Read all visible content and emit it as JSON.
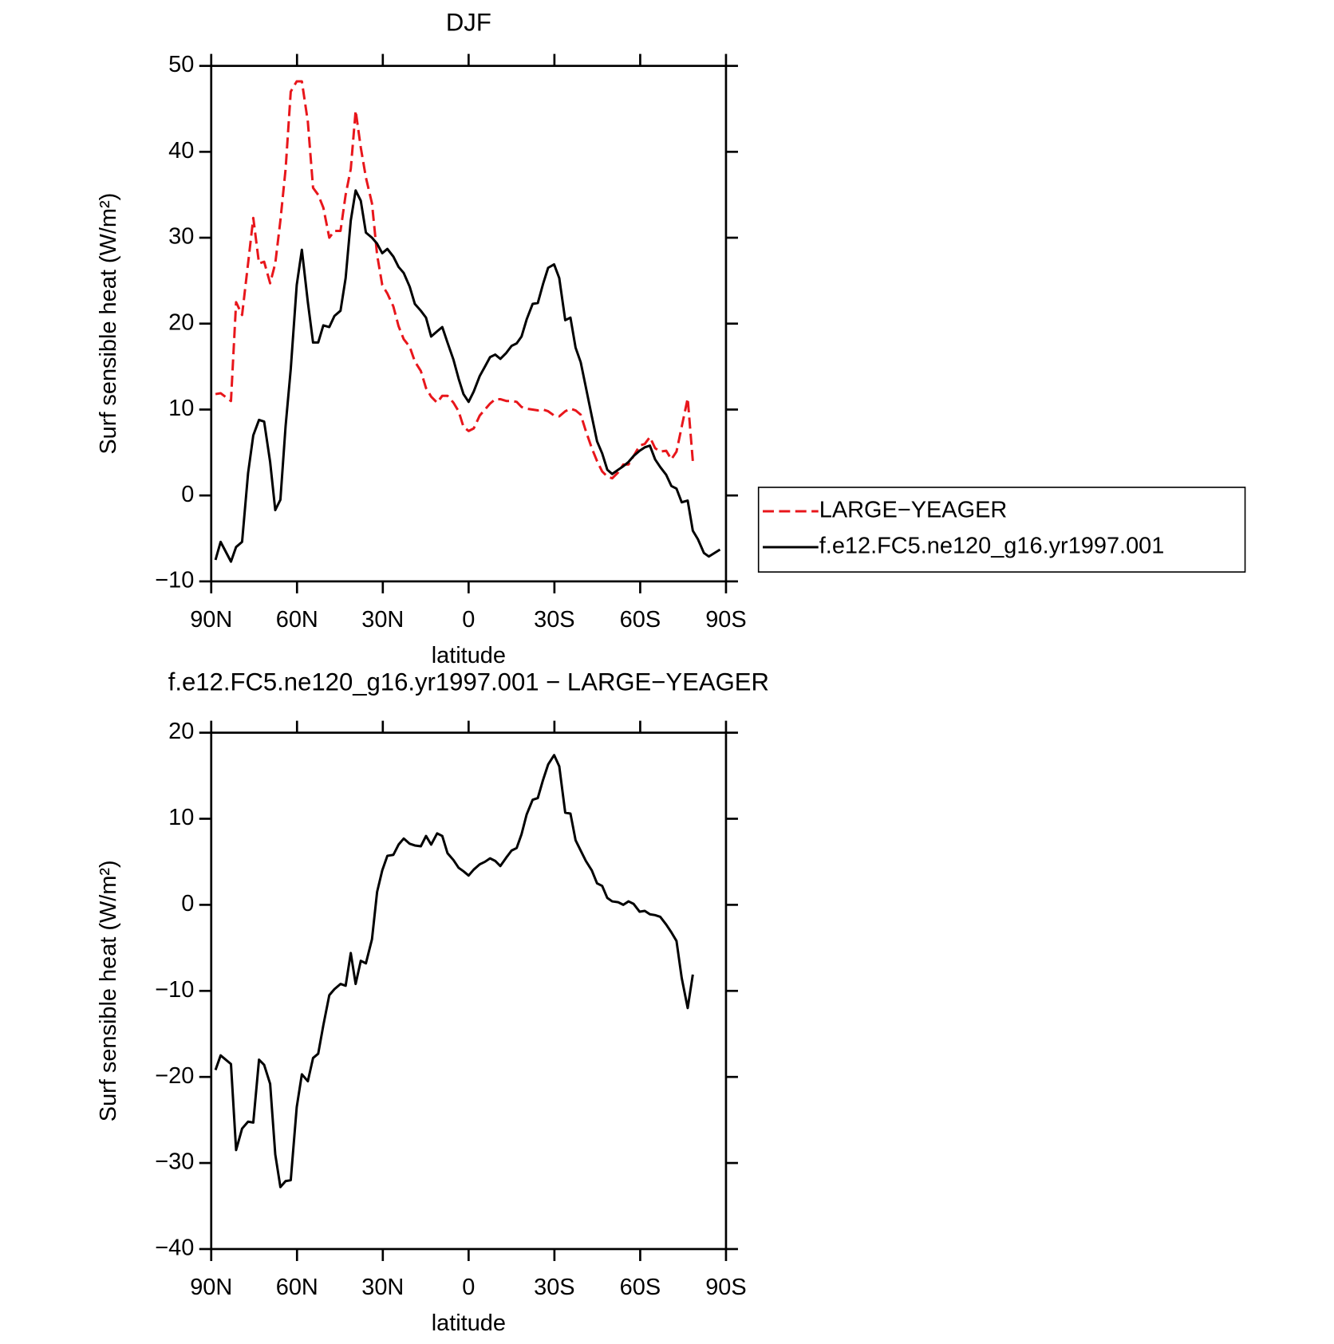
{
  "chart_data": [
    {
      "type": "line",
      "title": "DJF",
      "xlabel": "latitude",
      "ylabel": "Surf sensible heat (W/m²)",
      "xlim": [
        90,
        -90
      ],
      "xticks": [
        {
          "value": 90,
          "label": "90N"
        },
        {
          "value": 60,
          "label": "60N"
        },
        {
          "value": 30,
          "label": "30N"
        },
        0,
        {
          "value": -30,
          "label": "30S"
        },
        {
          "value": -60,
          "label": "60S"
        },
        {
          "value": -90,
          "label": "90S"
        }
      ],
      "ylim": [
        -10,
        50
      ],
      "yticks": [
        {
          "value": -10,
          "label": "−10"
        },
        0,
        10,
        20,
        30,
        40,
        50
      ],
      "legend": "right",
      "x": [
        88.5,
        86.7,
        83.1,
        81.3,
        79.2,
        77.1,
        75.3,
        73.3,
        71.5,
        69.4,
        67.6,
        65.8,
        64,
        62.2,
        60.1,
        58.3,
        56.2,
        54.4,
        52.6,
        50.8,
        48.7,
        46.9,
        44.8,
        43,
        41.2,
        39.5,
        37.7,
        35.9,
        33.8,
        32,
        30.2,
        28.4,
        26.3,
        24.5,
        22.7,
        20.6,
        18.8,
        16.7,
        14.9,
        13.1,
        11,
        9.2,
        7.4,
        5.3,
        3.5,
        1.8,
        0,
        -1.8,
        -3.9,
        -5.7,
        -7.5,
        -9.3,
        -11.1,
        -13.2,
        -15,
        -16.8,
        -18.5,
        -20.3,
        -22.4,
        -24.2,
        -26,
        -27.8,
        -29.9,
        -31.7,
        -33.8,
        -35.6,
        -37.4,
        -39.2,
        -41,
        -43.1,
        -44.9,
        -46.7,
        -48.5,
        -50.2,
        -52.3,
        -54.1,
        -55.9,
        -57.7,
        -59.8,
        -61.6,
        -63.4,
        -65.2,
        -67,
        -69.1,
        -70.9,
        -72.7,
        -74.5,
        -76.6,
        -78.4,
        -80.2,
        -82.3,
        -84,
        -87.9
      ],
      "series": [
        {
          "name": "LARGE−YEAGER",
          "color": "#e8161b",
          "dash": true,
          "values": [
            11.8,
            11.9,
            11,
            22.5,
            21,
            27,
            32.3,
            27,
            27.2,
            24.7,
            27,
            32,
            38,
            47,
            48.2,
            48.2,
            43.5,
            35.8,
            35,
            33.5,
            30,
            30.8,
            30.8,
            35,
            38,
            44.8,
            40.5,
            37,
            34,
            28,
            24.5,
            23.5,
            22,
            19.7,
            18.2,
            17.3,
            15.6,
            14.5,
            12.5,
            11.5,
            10.8,
            11.6,
            11.6,
            10.8,
            9.8,
            8,
            7.5,
            7.8,
            9.3,
            10,
            10.7,
            11.2,
            11.2,
            11,
            11,
            10.9,
            10.3,
            10.1,
            10,
            9.9,
            10,
            9.8,
            9.3,
            9.2,
            9.8,
            10.1,
            9.9,
            9.4,
            7.5,
            5.5,
            4,
            2.8,
            2.2,
            2,
            2.7,
            3.6,
            3.6,
            4.6,
            5.8,
            6,
            6.8,
            5.5,
            5.1,
            5.2,
            4.2,
            5.1,
            8,
            11.3,
            4,
            null,
            null,
            null,
            null
          ]
        },
        {
          "name": "f.e12.FC5.ne120_g16.yr1997.001",
          "color": "#000000",
          "dash": false,
          "values": [
            -7.5,
            -5.4,
            -7.7,
            -6,
            -5.4,
            2.6,
            7,
            8.8,
            8.6,
            3.9,
            -1.7,
            -0.5,
            8.1,
            14.7,
            24.5,
            28.6,
            22.5,
            17.8,
            17.8,
            19.8,
            19.6,
            20.9,
            21.5,
            25.3,
            32,
            35.5,
            34.3,
            30.6,
            30,
            29.3,
            28.2,
            28.7,
            27.8,
            26.6,
            25.9,
            24.3,
            22.3,
            21.5,
            20.7,
            18.5,
            19.1,
            19.6,
            17.8,
            15.8,
            13.6,
            11.8,
            10.9,
            12.1,
            13.9,
            15,
            16.1,
            16.4,
            15.9,
            16.6,
            17.4,
            17.7,
            18.5,
            20.5,
            22.3,
            22.4,
            24.6,
            26.5,
            26.9,
            25.3,
            20.4,
            20.7,
            17.2,
            15.5,
            12.6,
            9.2,
            6.3,
            4.9,
            3,
            2.5,
            3,
            3.4,
            3.9,
            4.6,
            5.2,
            5.6,
            5.8,
            4.2,
            3.3,
            2.4,
            1.1,
            0.8,
            -0.8,
            -0.6,
            -4.1,
            -5.1,
            -6.7,
            -7.1,
            -6.3
          ]
        }
      ]
    },
    {
      "type": "line",
      "title": "f.e12.FC5.ne120_g16.yr1997.001 − LARGE−YEAGER",
      "xlabel": "latitude",
      "ylabel": "Surf sensible heat (W/m²)",
      "xlim": [
        90,
        -90
      ],
      "xticks": [
        {
          "value": 90,
          "label": "90N"
        },
        {
          "value": 60,
          "label": "60N"
        },
        {
          "value": 30,
          "label": "30N"
        },
        0,
        {
          "value": -30,
          "label": "30S"
        },
        {
          "value": -60,
          "label": "60S"
        },
        {
          "value": -90,
          "label": "90S"
        }
      ],
      "ylim": [
        -40,
        20
      ],
      "yticks": [
        {
          "value": -40,
          "label": "−40"
        },
        {
          "value": -30,
          "label": "−30"
        },
        {
          "value": -20,
          "label": "−20"
        },
        {
          "value": -10,
          "label": "−10"
        },
        0,
        10,
        20
      ],
      "x": [
        88.5,
        86.7,
        83.1,
        81.3,
        79.2,
        77.1,
        75.3,
        73.3,
        71.5,
        69.4,
        67.6,
        65.8,
        64,
        62.2,
        60.1,
        58.3,
        56.2,
        54.4,
        52.6,
        50.8,
        48.7,
        46.9,
        44.8,
        43,
        41.2,
        39.5,
        37.7,
        35.9,
        33.8,
        32,
        30.2,
        28.4,
        26.3,
        24.5,
        22.7,
        20.6,
        18.8,
        16.7,
        14.9,
        13.1,
        11,
        9.2,
        7.4,
        5.3,
        3.5,
        1.8,
        0,
        -1.8,
        -3.9,
        -5.7,
        -7.5,
        -9.3,
        -11.1,
        -13.2,
        -15,
        -16.8,
        -18.5,
        -20.3,
        -22.4,
        -24.2,
        -26,
        -27.8,
        -29.9,
        -31.7,
        -33.8,
        -35.6,
        -37.4,
        -39.2,
        -41,
        -43.1,
        -44.9,
        -46.7,
        -48.5,
        -50.2,
        -52.3,
        -54.1,
        -55.9,
        -57.7,
        -59.8,
        -61.6,
        -63.4,
        -65.2,
        -67,
        -69.1,
        -70.9,
        -72.7,
        -74.5,
        -76.6,
        -78.4,
        -80.2,
        -82.3,
        -84,
        -87.9
      ],
      "series": [
        {
          "color": "#000000",
          "dash": false,
          "values": [
            -19.2,
            -17.5,
            -18.5,
            -28.5,
            -26,
            -25.2,
            -25.3,
            -18,
            -18.6,
            -20.8,
            -29,
            -32.8,
            -32.1,
            -32,
            -23.5,
            -19.7,
            -20.5,
            -17.8,
            -17.3,
            -14,
            -10.5,
            -9.8,
            -9.2,
            -9.4,
            -5.6,
            -9.2,
            -6.5,
            -6.8,
            -4,
            1.5,
            4,
            5.7,
            5.8,
            7,
            7.7,
            7.1,
            6.9,
            6.8,
            8,
            7,
            8.3,
            8,
            6,
            5.2,
            4.3,
            3.9,
            3.4,
            4.1,
            4.7,
            5,
            5.4,
            5.1,
            4.5,
            5.5,
            6.3,
            6.6,
            8.2,
            10.5,
            12.2,
            12.4,
            14.5,
            16.3,
            17.4,
            16.1,
            10.7,
            10.6,
            7.5,
            6.3,
            5.1,
            4,
            2.5,
            2.2,
            0.8,
            0.4,
            0.3,
            0,
            0.4,
            0.1,
            -0.8,
            -0.7,
            -1.1,
            -1.2,
            -1.4,
            -2.3,
            -3.2,
            -4.2,
            -8.5,
            -12,
            -8.1,
            null,
            null,
            null,
            null
          ]
        }
      ]
    }
  ]
}
